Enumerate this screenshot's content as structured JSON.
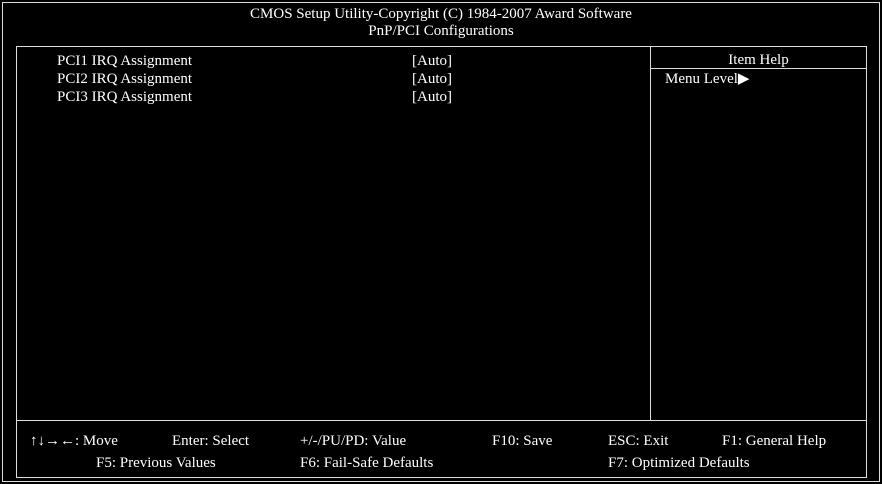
{
  "header": {
    "title": "CMOS Setup Utility-Copyright (C) 1984-2007 Award Software",
    "subtitle": "PnP/PCI Configurations"
  },
  "items": [
    {
      "label": "PCI1 IRQ Assignment",
      "value": "[Auto]"
    },
    {
      "label": "PCI2 IRQ Assignment",
      "value": "[Auto]"
    },
    {
      "label": "PCI3 IRQ Assignment",
      "value": "[Auto]"
    }
  ],
  "help": {
    "title": "Item Help",
    "menu_level": "Menu Level▶"
  },
  "footer": {
    "row1": [
      "↑↓→←: Move",
      "Enter: Select",
      "+/-/PU/PD: Value",
      "F10: Save",
      "ESC: Exit",
      "F1: General Help"
    ],
    "row2": [
      "F5: Previous Values",
      "F6: Fail-Safe Defaults",
      "F7: Optimized Defaults"
    ]
  }
}
